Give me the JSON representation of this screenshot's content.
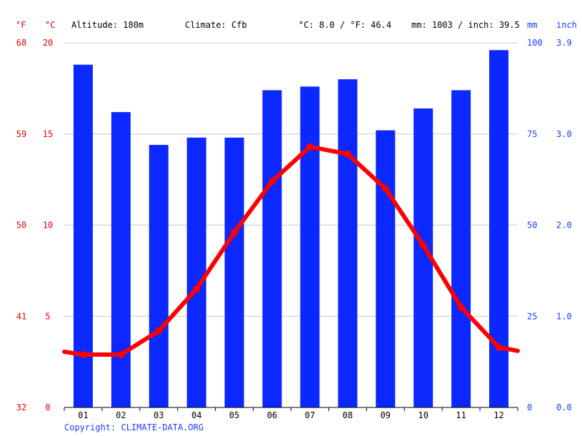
{
  "header": {
    "unit_f": "°F",
    "unit_c": "°C",
    "altitude": "Altitude: 180m",
    "climate": "Climate: Cfb",
    "temp_avg": "°C: 8.0 / °F: 46.4",
    "precip_avg": "mm: 1003 / inch: 39.5",
    "unit_mm": "mm",
    "unit_inch": "inch"
  },
  "footer": {
    "copyright": "Copyright: CLIMATE-DATA.ORG"
  },
  "chart_data": {
    "type": "bar+line",
    "categories": [
      "01",
      "02",
      "03",
      "04",
      "05",
      "06",
      "07",
      "08",
      "09",
      "10",
      "11",
      "12"
    ],
    "series": [
      {
        "axis": "right",
        "type": "bar",
        "color": "#0a28ff",
        "values": [
          94,
          81,
          72,
          74,
          74,
          87,
          88,
          90,
          76,
          82,
          87,
          98
        ]
      },
      {
        "axis": "left",
        "type": "line",
        "color": "#ff0000",
        "values": [
          2.9,
          2.9,
          4.2,
          6.5,
          9.6,
          12.4,
          14.3,
          13.9,
          12.0,
          8.9,
          5.5,
          3.3
        ]
      }
    ],
    "left_axis": {
      "ticks_c": [
        "0",
        "5",
        "10",
        "15",
        "20"
      ],
      "ticks_f": [
        "32",
        "41",
        "50",
        "59",
        "68"
      ],
      "ylim": [
        0,
        20
      ]
    },
    "right_axis": {
      "ticks_mm": [
        "0",
        "25",
        "50",
        "75",
        "100"
      ],
      "ticks_inch": [
        "0.0",
        "1.0",
        "2.0",
        "3.0",
        "3.9"
      ],
      "ylim": [
        0,
        100
      ]
    },
    "grid": true
  }
}
